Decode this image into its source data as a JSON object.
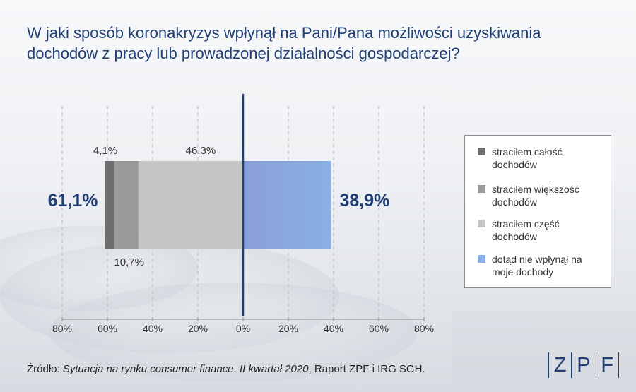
{
  "title": "W jaki sposób koronakryzys wpłynął na Pani/Pana możliwości uzyskiwania dochodów z pracy lub prowadzonej działalności gospodarczej?",
  "chart_data": {
    "type": "bar",
    "orientation": "horizontal-diverging",
    "stacked": true,
    "xlim": [
      -80,
      80
    ],
    "ticks": [
      -80,
      -60,
      -40,
      -20,
      0,
      20,
      40,
      60,
      80
    ],
    "tick_labels": [
      "80%",
      "60%",
      "40%",
      "20%",
      "0%",
      "20%",
      "40%",
      "60%",
      "80%"
    ],
    "grid": true,
    "legend_position": "right",
    "series": [
      {
        "name": "straciłem całość dochodów",
        "value": -4.1,
        "label": "4,1%",
        "color": "#6e6e6e"
      },
      {
        "name": "straciłem większość dochodów",
        "value": -10.7,
        "label": "10,7%",
        "color": "#9a9a9a"
      },
      {
        "name": "straciłem część dochodów",
        "value": -46.3,
        "label": "46,3%",
        "color": "#c4c4c4"
      },
      {
        "name": "dotąd nie wpłynął na moje dochody",
        "value": 38.9,
        "label": "",
        "color": "#8ab0e4",
        "color_end": "#8b9fdb"
      }
    ],
    "totals": {
      "negative": "61,1%",
      "positive": "38,9%"
    }
  },
  "legend": [
    {
      "label": "straciłem całość dochodów",
      "color": "#6e6e6e"
    },
    {
      "label": "straciłem większość dochodów",
      "color": "#9a9a9a"
    },
    {
      "label": "straciłem część dochodów",
      "color": "#c4c4c4"
    },
    {
      "label": "dotąd nie wpłynął na moje dochody",
      "color": "#8eaee6"
    }
  ],
  "source": {
    "prefix": "Źródło: ",
    "italic": "Sytuacja na rynku consumer finance. II kwartał 2020",
    "suffix": ", Raport ZPF i IRG SGH."
  },
  "logo": {
    "letters": [
      "Z",
      "P",
      "F"
    ]
  }
}
